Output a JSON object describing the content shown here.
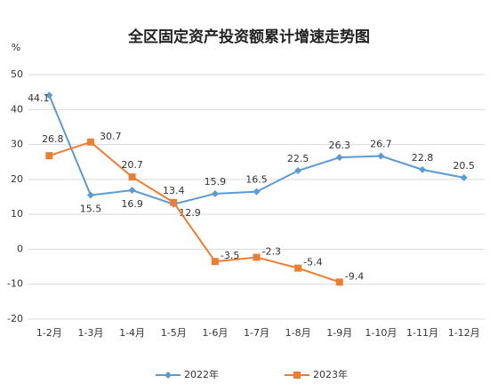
{
  "chart_data": {
    "type": "line",
    "title": "全区固定资产投资额累计增速走势图",
    "y_label": "%",
    "categories": [
      "1-2月",
      "1-3月",
      "1-4月",
      "1-5月",
      "1-6月",
      "1-7月",
      "1-8月",
      "1-9月",
      "1-10月",
      "1-11月",
      "1-12月"
    ],
    "series": [
      {
        "name": "2022年",
        "color": "#5b9bd5",
        "marker": "diamond",
        "values": [
          44.1,
          15.5,
          16.9,
          12.9,
          15.9,
          16.5,
          22.5,
          26.3,
          26.7,
          22.8,
          20.5
        ]
      },
      {
        "name": "2023年",
        "color": "#ed7d31",
        "marker": "square",
        "values": [
          26.8,
          30.7,
          20.7,
          13.4,
          -3.5,
          -2.3,
          -5.4,
          -9.4,
          null,
          null,
          null
        ]
      }
    ],
    "ylim": [
      -20,
      50
    ],
    "yticks": [
      -20,
      -10,
      0,
      10,
      20,
      30,
      40,
      50
    ],
    "grid": true,
    "legend": "bottom"
  }
}
